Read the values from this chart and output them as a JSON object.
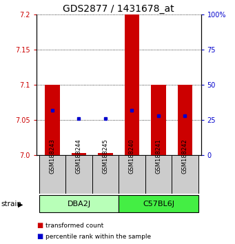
{
  "title": "GDS2877 / 1431678_at",
  "samples": [
    "GSM188243",
    "GSM188244",
    "GSM188245",
    "GSM188240",
    "GSM188241",
    "GSM188242"
  ],
  "groups": [
    {
      "name": "DBA2J",
      "indices": [
        0,
        1,
        2
      ],
      "color": "#b8ffb8"
    },
    {
      "name": "C57BL6J",
      "indices": [
        3,
        4,
        5
      ],
      "color": "#44ee44"
    }
  ],
  "ylim_left": [
    7.0,
    7.2
  ],
  "ylim_right": [
    0,
    100
  ],
  "yticks_left": [
    7.0,
    7.05,
    7.1,
    7.15,
    7.2
  ],
  "yticks_right": [
    0,
    25,
    50,
    75,
    100
  ],
  "ytick_labels_right": [
    "0",
    "25",
    "50",
    "75",
    "100%"
  ],
  "bar_color": "#cc0000",
  "dot_color": "#0000cc",
  "bar_bottom": 7.0,
  "bar_tops": [
    7.1,
    7.003,
    7.003,
    7.2,
    7.1,
    7.1
  ],
  "percentile_values": [
    32,
    26,
    26,
    32,
    28,
    28
  ],
  "bar_width": 0.55,
  "label_area_color": "#cccccc",
  "title_fontsize": 10,
  "tick_fontsize": 7,
  "label_fontsize": 7
}
